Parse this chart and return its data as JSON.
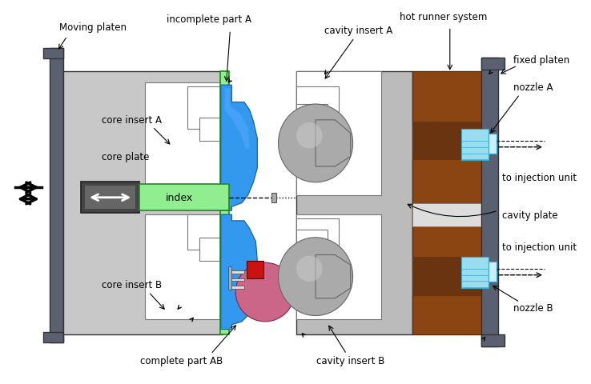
{
  "labels": {
    "moving_platen": "Moving platen",
    "incomplete_part_A": "incomplete part A",
    "hot_runner_system": "hot runner system",
    "cavity_insert_A": "cavity insert A",
    "fixed_platen": "fixed platen",
    "nozzle_A": "nozzle A",
    "core_insert_A": "core insert A",
    "core_plate": "core plate",
    "to_injection_unit": "to injection unit",
    "index": "index",
    "cavity_plate": "cavity plate",
    "to_injection_unit2": "to injection unit",
    "core_insert_B": "core insert B",
    "complete_part_AB": "complete part AB",
    "cavity_insert_B": "cavity insert B",
    "nozzle_B": "nozzle B"
  },
  "colors": {
    "background": "#ffffff",
    "moving_platen": "#5a6070",
    "core_plate_fill": "#c8c8c8",
    "hot_runner_fill": "#8B4513",
    "fixed_platen_fill": "#5a6070",
    "index_green": "#90EE90",
    "index_green_dark": "#228822",
    "index_box_dark": "#555555",
    "blue_part": "#3399EE",
    "blue_dark": "#1155AA",
    "nozzle_cyan": "#99DDEE",
    "nozzle_cyan_dark": "#33AACC",
    "red_part": "#CC2222",
    "pink_part": "#CC3366",
    "mold_gray": "#999999",
    "mold_gray_dark": "#666666",
    "outline": "#333333",
    "white": "#ffffff",
    "cavity_plate_gray": "#bbbbbb",
    "silver": "#aaaaaa"
  }
}
